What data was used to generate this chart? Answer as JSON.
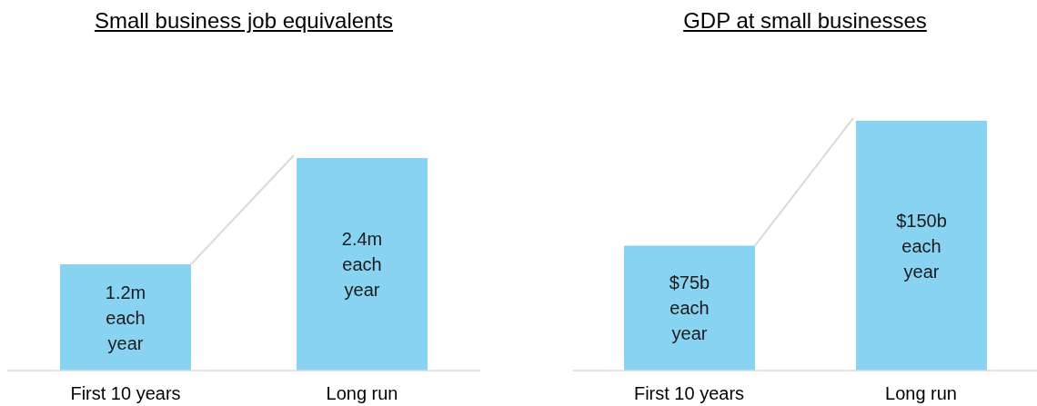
{
  "chart_data": [
    {
      "type": "bar",
      "title": "Small business job equivalents",
      "categories": [
        "First 10 years",
        "Long run"
      ],
      "values": [
        1.2,
        2.4
      ],
      "color": "#87d3f1",
      "value_labels": [
        "1.2m each year",
        "2.4m each year"
      ]
    },
    {
      "type": "bar",
      "title": "GDP at small businesses",
      "categories": [
        "First 10 years",
        "Long run"
      ],
      "values": [
        75,
        150
      ],
      "color": "#87d3f1",
      "value_labels": [
        "$75b each year",
        "$150b each year"
      ]
    }
  ]
}
